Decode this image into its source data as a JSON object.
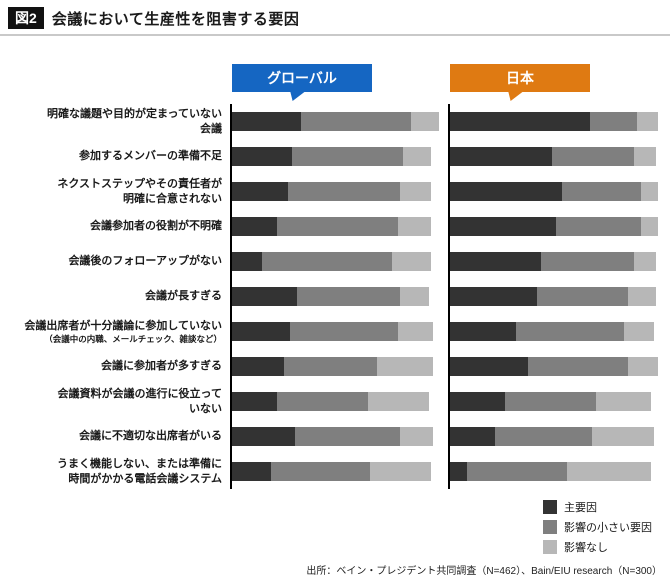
{
  "header": {
    "badge": "図2",
    "title": "会議において生産性を阻害する要因"
  },
  "colors": {
    "global_label_bg": "#1566c2",
    "japan_label_bg": "#df7a12",
    "axis_line": "#000000",
    "segment_primary": "#333333",
    "segment_minor": "#7f7f7f",
    "segment_none": "#b7b7b7"
  },
  "chart_data": {
    "type": "bar",
    "orientation": "horizontal-stacked",
    "groups": [
      "グローバル",
      "日本"
    ],
    "segments": [
      "主要因",
      "影響の小さい要因",
      "影響なし"
    ],
    "segment_colors": [
      "#333333",
      "#7f7f7f",
      "#b7b7b7"
    ],
    "xlim": [
      0,
      100
    ],
    "categories": [
      {
        "label": "明確な議題や目的が定まっていない会議",
        "lines": [
          "明確な議題や目的が定まっていない",
          "会議"
        ]
      },
      {
        "label": "参加するメンバーの準備不足",
        "lines": [
          "参加するメンバーの準備不足"
        ]
      },
      {
        "label": "ネクストステップやその責任者が明確に合意されない",
        "lines": [
          "ネクストステップやその責任者が",
          "明確に合意されない"
        ]
      },
      {
        "label": "会議参加者の役割が不明確",
        "lines": [
          "会議参加者の役割が不明確"
        ]
      },
      {
        "label": "会議後のフォローアップがない",
        "lines": [
          "会議後のフォローアップがない"
        ]
      },
      {
        "label": "会議が長すぎる",
        "lines": [
          "会議が長すぎる"
        ]
      },
      {
        "label": "会議出席者が十分議論に参加していない",
        "lines": [
          "会議出席者が十分議論に参加していない"
        ],
        "note": "（会議中の内職、メールチェック、雑談など）"
      },
      {
        "label": "会議に参加者が多すぎる",
        "lines": [
          "会議に参加者が多すぎる"
        ]
      },
      {
        "label": "会議資料が会議の進行に役立っていない",
        "lines": [
          "会議資料が会議の進行に役立って",
          "いない"
        ]
      },
      {
        "label": "会議に不適切な出席者がいる",
        "lines": [
          "会議に不適切な出席者がいる"
        ]
      },
      {
        "label": "うまく機能しない、または準備に時間がかかる電話会議システム",
        "lines": [
          "うまく機能しない、または準備に",
          "時間がかかる電話会議システム"
        ]
      }
    ],
    "series": {
      "global": [
        [
          32,
          51,
          13
        ],
        [
          28,
          51,
          13
        ],
        [
          26,
          52,
          14
        ],
        [
          21,
          56,
          15
        ],
        [
          14,
          60,
          18
        ],
        [
          30,
          48,
          13
        ],
        [
          27,
          50,
          16
        ],
        [
          24,
          43,
          26
        ],
        [
          21,
          42,
          28
        ],
        [
          29,
          49,
          15
        ],
        [
          18,
          46,
          28
        ]
      ],
      "japan": [
        [
          66,
          22,
          10
        ],
        [
          48,
          39,
          10
        ],
        [
          53,
          37,
          8
        ],
        [
          50,
          40,
          8
        ],
        [
          43,
          44,
          10
        ],
        [
          41,
          43,
          13
        ],
        [
          31,
          51,
          14
        ],
        [
          37,
          47,
          14
        ],
        [
          26,
          43,
          26
        ],
        [
          21,
          46,
          29
        ],
        [
          8,
          47,
          40
        ]
      ]
    }
  },
  "legend": {
    "items": [
      {
        "label": "主要因",
        "color": "#333333"
      },
      {
        "label": "影響の小さい要因",
        "color": "#7f7f7f"
      },
      {
        "label": "影響なし",
        "color": "#b7b7b7"
      }
    ]
  },
  "footer": {
    "source": "出所：ベイン・プレジデント共同調査（N=462）、Bain/EIU research（N=300）"
  }
}
